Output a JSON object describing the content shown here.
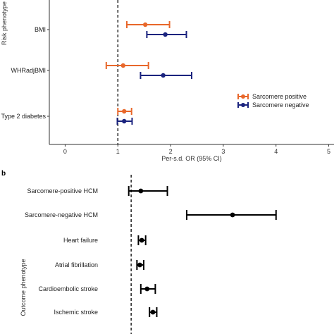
{
  "chart_data": [
    {
      "type": "forest",
      "title": "",
      "xlabel": "Per-s.d. OR (95% CI)",
      "ylabel": "Risk phenotype",
      "xlim": [
        -0.3,
        5.1
      ],
      "xticks": [
        "0",
        "1",
        "2",
        "3",
        "4",
        "5"
      ],
      "reference_line": 1,
      "categories": [
        "BMI",
        "WHRadjBMI",
        "Type 2 diabetes"
      ],
      "legend_position": "right",
      "series": [
        {
          "name": "Sarcomere positive",
          "color": "#e8672a",
          "estimates": [
            1.52,
            1.1,
            1.12
          ],
          "lower": [
            1.17,
            0.78,
            1.0
          ],
          "upper": [
            1.98,
            1.58,
            1.26
          ]
        },
        {
          "name": "Sarcomere negative",
          "color": "#1a237e",
          "estimates": [
            1.9,
            1.86,
            1.12
          ],
          "lower": [
            1.55,
            1.43,
            0.99
          ],
          "upper": [
            2.3,
            2.4,
            1.27
          ]
        }
      ]
    },
    {
      "type": "forest",
      "panel_label": "b",
      "title": "",
      "xlabel": "",
      "ylabel": "Outcome phenotype",
      "xlim": [
        0.4,
        5.2
      ],
      "reference_line": 1,
      "categories": [
        "Sarcomere-positive HCM",
        "Sarcomere-negative HCM",
        "Heart failure",
        "Atrial fibrillation",
        "Cardioembolic stroke",
        "Ischemic stroke"
      ],
      "series": [
        {
          "name": "",
          "color": "#000000",
          "estimates": [
            1.2,
            3.1,
            1.22,
            1.18,
            1.33,
            1.45
          ],
          "lower": [
            0.95,
            2.15,
            1.15,
            1.12,
            1.2,
            1.38
          ],
          "upper": [
            1.75,
            4.0,
            1.3,
            1.26,
            1.5,
            1.53
          ]
        }
      ]
    }
  ]
}
